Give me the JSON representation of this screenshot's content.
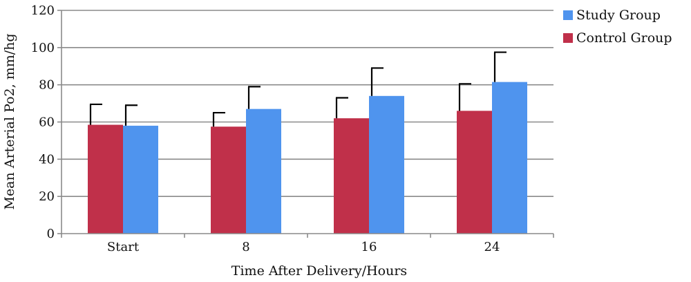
{
  "chart_data": {
    "type": "bar",
    "title": "",
    "xlabel": "Time After Delivery/Hours",
    "ylabel": "Mean Arterial Po2, mm/hg",
    "categories": [
      "Start",
      "8",
      "16",
      "24"
    ],
    "ylim": [
      0,
      120
    ],
    "yticks": [
      0,
      20,
      40,
      60,
      80,
      100,
      120
    ],
    "grid": true,
    "legend": "right",
    "error_bars": "upper",
    "series": [
      {
        "name": "Control Group",
        "color": "#c0304a",
        "values": [
          58.5,
          57.5,
          62,
          66
        ],
        "errors": [
          11,
          7.5,
          11,
          14.5
        ]
      },
      {
        "name": "Study Group",
        "color": "#4f94ee",
        "values": [
          58,
          67,
          74,
          81.5
        ],
        "errors": [
          11,
          12,
          15,
          16
        ]
      }
    ],
    "legend_order": [
      "Study Group",
      "Control Group"
    ]
  }
}
